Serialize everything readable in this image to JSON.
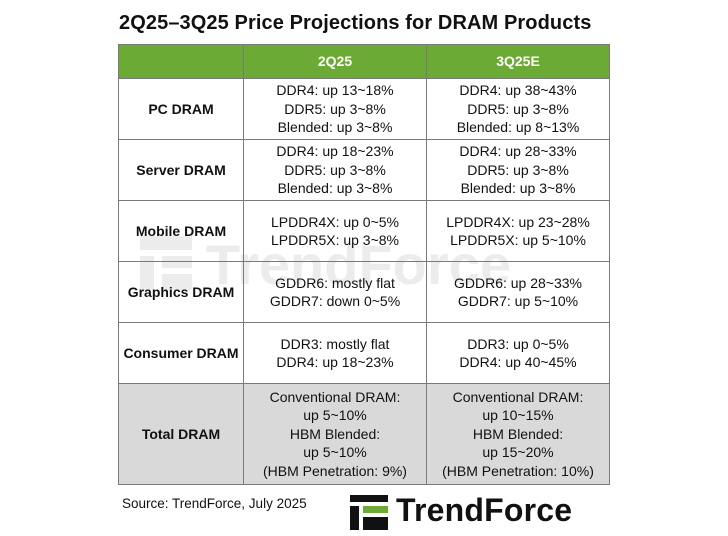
{
  "title": "2Q25–3Q25 Price Projections  for DRAM Products",
  "table": {
    "header": [
      "",
      "2Q25",
      "3Q25E"
    ],
    "rows": [
      {
        "label": "PC DRAM",
        "q2": [
          "DDR4: up 13~18%",
          "DDR5: up 3~8%",
          "Blended: up 3~8%"
        ],
        "q3": [
          "DDR4: up 38~43%",
          "DDR5: up 3~8%",
          "Blended: up 8~13%"
        ]
      },
      {
        "label": "Server DRAM",
        "q2": [
          "DDR4: up 18~23%",
          "DDR5: up 3~8%",
          "Blended: up 3~8%"
        ],
        "q3": [
          "DDR4: up 28~33%",
          "DDR5: up 3~8%",
          "Blended: up 3~8%"
        ]
      },
      {
        "label": "Mobile DRAM",
        "q2": [
          "LPDDR4X: up 0~5%",
          "LPDDR5X: up 3~8%"
        ],
        "q3": [
          "LPDDR4X: up 23~28%",
          "LPDDR5X: up 5~10%"
        ]
      },
      {
        "label": "Graphics DRAM",
        "q2": [
          "GDDR6: mostly flat",
          "GDDR7: down 0~5%"
        ],
        "q3": [
          "GDDR6: up 28~33%",
          "GDDR7: up 5~10%"
        ]
      },
      {
        "label": "Consumer DRAM",
        "q2": [
          "DDR3: mostly flat",
          "DDR4: up 18~23%"
        ],
        "q3": [
          "DDR3: up 0~5%",
          "DDR4: up 40~45%"
        ]
      },
      {
        "label": "Total DRAM",
        "q2": [
          "Conventional DRAM:",
          "up 5~10%",
          "HBM Blended:",
          "up 5~10%",
          "(HBM Penetration: 9%)"
        ],
        "q3": [
          "Conventional DRAM:",
          "up 10~15%",
          "HBM Blended:",
          "up 15~20%",
          "(HBM Penetration: 10%)"
        ]
      }
    ]
  },
  "source": "Source: TrendForce, July 2025",
  "logo": {
    "text": "TrendForce",
    "icon": "trendforce-logo-icon",
    "accent": "#6aaa35"
  },
  "colors": {
    "header_bg": "#6aaa35",
    "total_bg": "#d9d9d9",
    "border": "#7a7a7a"
  }
}
